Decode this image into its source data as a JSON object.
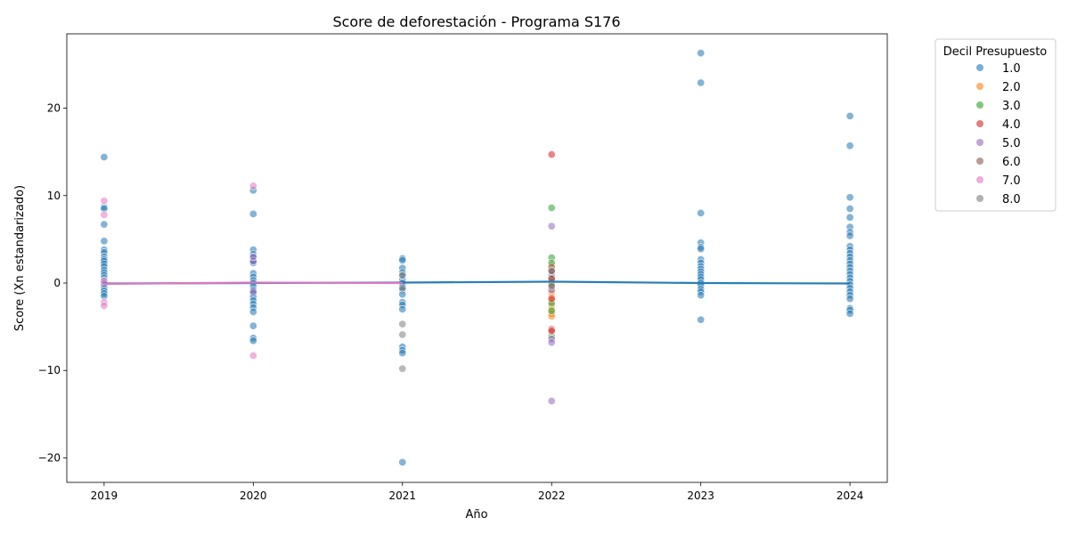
{
  "chart_data": {
    "type": "scatter",
    "title": "Score de deforestación - Programa S176",
    "xlabel": "Año",
    "ylabel": "Score (Xn estandarizado)",
    "xlim": [
      2018.75,
      2024.25
    ],
    "ylim": [
      -22.8,
      28.5
    ],
    "x_ticks": [
      "2019",
      "2020",
      "2021",
      "2022",
      "2023",
      "2024"
    ],
    "y_ticks": [
      {
        "value": -20,
        "label": "−20"
      },
      {
        "value": -10,
        "label": "−10"
      },
      {
        "value": 0,
        "label": "0"
      },
      {
        "value": 10,
        "label": "10"
      },
      {
        "value": 20,
        "label": "20"
      }
    ],
    "grid": false,
    "legend": {
      "title": "Decil Presupuesto",
      "placement": "outside-right"
    },
    "series": [
      {
        "name": "1.0",
        "color": "#1f77b4",
        "points": [
          [
            2019,
            14.4
          ],
          [
            2019,
            8.7
          ],
          [
            2019,
            8.5
          ],
          [
            2019,
            6.7
          ],
          [
            2019,
            4.8
          ],
          [
            2019,
            3.8
          ],
          [
            2019,
            3.5
          ],
          [
            2019,
            3.0
          ],
          [
            2019,
            2.7
          ],
          [
            2019,
            2.5
          ],
          [
            2019,
            2.2
          ],
          [
            2019,
            1.9
          ],
          [
            2019,
            1.5
          ],
          [
            2019,
            1.2
          ],
          [
            2019,
            0.9
          ],
          [
            2019,
            0.6
          ],
          [
            2019,
            0.3
          ],
          [
            2019,
            0.0
          ],
          [
            2019,
            -0.3
          ],
          [
            2019,
            -0.6
          ],
          [
            2019,
            -0.9
          ],
          [
            2019,
            -1.2
          ],
          [
            2019,
            -1.5
          ],
          [
            2020,
            10.6
          ],
          [
            2020,
            7.9
          ],
          [
            2020,
            3.8
          ],
          [
            2020,
            3.3
          ],
          [
            2020,
            2.9
          ],
          [
            2020,
            2.6
          ],
          [
            2020,
            2.3
          ],
          [
            2020,
            1.1
          ],
          [
            2020,
            0.7
          ],
          [
            2020,
            0.3
          ],
          [
            2020,
            0.0
          ],
          [
            2020,
            -0.4
          ],
          [
            2020,
            -0.8
          ],
          [
            2020,
            -1.2
          ],
          [
            2020,
            -1.6
          ],
          [
            2020,
            -2.0
          ],
          [
            2020,
            -2.4
          ],
          [
            2020,
            -2.8
          ],
          [
            2020,
            -3.3
          ],
          [
            2020,
            -4.9
          ],
          [
            2020,
            -6.3
          ],
          [
            2020,
            -6.6
          ],
          [
            2021,
            2.8
          ],
          [
            2021,
            2.6
          ],
          [
            2021,
            1.7
          ],
          [
            2021,
            1.2
          ],
          [
            2021,
            0.8
          ],
          [
            2021,
            0.4
          ],
          [
            2021,
            0.0
          ],
          [
            2021,
            -0.4
          ],
          [
            2021,
            -0.8
          ],
          [
            2021,
            -1.3
          ],
          [
            2021,
            -2.2
          ],
          [
            2021,
            -2.5
          ],
          [
            2021,
            -3.0
          ],
          [
            2021,
            -7.3
          ],
          [
            2021,
            -7.7
          ],
          [
            2021,
            -8.0
          ],
          [
            2021,
            -20.5
          ],
          [
            2022,
            0.2
          ],
          [
            2022,
            -0.5
          ],
          [
            2023,
            26.3
          ],
          [
            2023,
            22.9
          ],
          [
            2023,
            8.0
          ],
          [
            2023,
            4.6
          ],
          [
            2023,
            4.1
          ],
          [
            2023,
            3.9
          ],
          [
            2023,
            2.7
          ],
          [
            2023,
            2.3
          ],
          [
            2023,
            1.9
          ],
          [
            2023,
            1.6
          ],
          [
            2023,
            1.3
          ],
          [
            2023,
            1.0
          ],
          [
            2023,
            0.7
          ],
          [
            2023,
            0.4
          ],
          [
            2023,
            0.0
          ],
          [
            2023,
            -0.3
          ],
          [
            2023,
            -0.7
          ],
          [
            2023,
            -1.0
          ],
          [
            2023,
            -1.4
          ],
          [
            2023,
            -4.2
          ],
          [
            2024,
            19.1
          ],
          [
            2024,
            15.7
          ],
          [
            2024,
            9.8
          ],
          [
            2024,
            8.5
          ],
          [
            2024,
            7.5
          ],
          [
            2024,
            6.4
          ],
          [
            2024,
            5.8
          ],
          [
            2024,
            5.4
          ],
          [
            2024,
            4.2
          ],
          [
            2024,
            3.8
          ],
          [
            2024,
            3.4
          ],
          [
            2024,
            3.0
          ],
          [
            2024,
            2.6
          ],
          [
            2024,
            2.2
          ],
          [
            2024,
            1.8
          ],
          [
            2024,
            1.4
          ],
          [
            2024,
            1.0
          ],
          [
            2024,
            0.6
          ],
          [
            2024,
            0.2
          ],
          [
            2024,
            -0.2
          ],
          [
            2024,
            -0.6
          ],
          [
            2024,
            -1.0
          ],
          [
            2024,
            -1.4
          ],
          [
            2024,
            -1.8
          ],
          [
            2024,
            -2.9
          ],
          [
            2024,
            -3.1
          ],
          [
            2024,
            -3.5
          ]
        ],
        "trend": [
          [
            2019,
            -0.05
          ],
          [
            2020,
            0.0
          ],
          [
            2021,
            0.05
          ],
          [
            2022,
            0.15
          ],
          [
            2023,
            0.0
          ],
          [
            2024,
            -0.05
          ]
        ]
      },
      {
        "name": "2.0",
        "color": "#ff7f0e",
        "points": [
          [
            2022,
            2.0
          ],
          [
            2022,
            1.6
          ],
          [
            2022,
            1.2
          ],
          [
            2022,
            0.8
          ],
          [
            2022,
            0.4
          ],
          [
            2022,
            -0.3
          ],
          [
            2022,
            -0.7
          ],
          [
            2022,
            -1.1
          ],
          [
            2022,
            -1.6
          ],
          [
            2022,
            -2.0
          ],
          [
            2022,
            -2.6
          ],
          [
            2022,
            -3.0
          ],
          [
            2022,
            -3.5
          ],
          [
            2022,
            -3.8
          ]
        ],
        "trend": []
      },
      {
        "name": "3.0",
        "color": "#2ca02c",
        "points": [
          [
            2022,
            8.6
          ],
          [
            2022,
            2.9
          ],
          [
            2022,
            2.3
          ],
          [
            2022,
            0.9
          ],
          [
            2022,
            0.0
          ],
          [
            2022,
            -2.3
          ],
          [
            2022,
            -3.2
          ],
          [
            2022,
            -6.1
          ]
        ],
        "trend": []
      },
      {
        "name": "4.0",
        "color": "#d62728",
        "points": [
          [
            2022,
            14.7
          ],
          [
            2022,
            1.5
          ],
          [
            2022,
            0.6
          ],
          [
            2022,
            -1.8
          ],
          [
            2022,
            -5.3
          ],
          [
            2022,
            -5.5
          ]
        ],
        "trend": []
      },
      {
        "name": "5.0",
        "color": "#9467bd",
        "points": [
          [
            2019,
            -0.1
          ],
          [
            2020,
            2.5
          ],
          [
            2020,
            3.0
          ],
          [
            2020,
            -1.0
          ],
          [
            2022,
            6.5
          ],
          [
            2022,
            1.0
          ],
          [
            2022,
            -0.8
          ],
          [
            2022,
            -6.4
          ],
          [
            2022,
            -6.8
          ],
          [
            2022,
            -13.5
          ]
        ],
        "trend": []
      },
      {
        "name": "6.0",
        "color": "#8c564b",
        "points": [
          [
            2022,
            1.8
          ],
          [
            2022,
            1.3
          ],
          [
            2022,
            0.5
          ],
          [
            2022,
            -0.2
          ]
        ],
        "trend": []
      },
      {
        "name": "7.0",
        "color": "#e377c2",
        "points": [
          [
            2019,
            9.4
          ],
          [
            2019,
            7.8
          ],
          [
            2019,
            0.2
          ],
          [
            2019,
            -2.2
          ],
          [
            2019,
            -2.6
          ],
          [
            2020,
            11.1
          ],
          [
            2020,
            -8.3
          ]
        ],
        "trend": [
          [
            2019,
            -0.1
          ],
          [
            2020,
            0.05
          ],
          [
            2021,
            0.0
          ]
        ]
      },
      {
        "name": "8.0",
        "color": "#7f7f7f",
        "points": [
          [
            2021,
            -4.7
          ],
          [
            2021,
            -5.9
          ],
          [
            2021,
            -9.8
          ],
          [
            2021,
            -0.6
          ],
          [
            2021,
            0.9
          ],
          [
            2022,
            1.4
          ],
          [
            2022,
            -0.4
          ]
        ],
        "trend": []
      }
    ]
  }
}
